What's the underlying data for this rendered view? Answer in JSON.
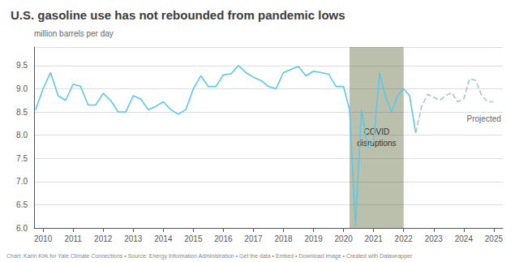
{
  "chart_data": {
    "type": "line",
    "title": "U.S. gasoline use has not rebounded from pandemic lows",
    "ylabel": "million barrels per day",
    "footer": "Chart: Karin Kirk for Yale Climate Connections • Source: Energy Information Administration • Get the data • Embed • Download image • Created with Datawrapper",
    "series": [
      {
        "x": [
          2009.75,
          2010.0,
          2010.25,
          2010.5,
          2010.75,
          2011.0,
          2011.25,
          2011.5,
          2011.75,
          2012.0,
          2012.25,
          2012.5,
          2012.75,
          2013.0,
          2013.25,
          2013.5,
          2013.75,
          2014.0,
          2014.25,
          2014.5,
          2014.75,
          2015.0,
          2015.25,
          2015.5,
          2015.75,
          2016.0,
          2016.25,
          2016.5,
          2016.75,
          2017.0,
          2017.25,
          2017.5,
          2017.75,
          2018.0,
          2018.25,
          2018.5,
          2018.75,
          2019.0,
          2019.25,
          2019.5,
          2019.75,
          2020.0,
          2020.2,
          2020.4,
          2020.6,
          2020.8,
          2021.0,
          2021.2,
          2021.4,
          2021.6,
          2021.8,
          2022.0,
          2022.2,
          2022.4
        ],
        "values": [
          8.55,
          9.0,
          9.35,
          8.85,
          8.75,
          9.1,
          9.05,
          8.65,
          8.65,
          8.9,
          8.75,
          8.5,
          8.5,
          8.85,
          8.78,
          8.55,
          8.62,
          8.72,
          8.55,
          8.45,
          8.55,
          9.0,
          9.28,
          9.05,
          9.05,
          9.3,
          9.32,
          9.5,
          9.35,
          9.25,
          9.18,
          9.05,
          9.0,
          9.35,
          9.42,
          9.48,
          9.28,
          9.38,
          9.35,
          9.32,
          9.05,
          9.05,
          8.55,
          6.05,
          8.55,
          7.75,
          7.85,
          9.35,
          8.82,
          8.5,
          8.85,
          9.0,
          8.85,
          8.05
        ],
        "color": "#5bc8e8",
        "line_style": "solid"
      },
      {
        "x": [
          2022.4,
          2022.6,
          2022.8,
          2023.0,
          2023.2,
          2023.4,
          2023.6,
          2023.8,
          2024.0,
          2024.2,
          2024.4,
          2024.6,
          2024.8,
          2025.0
        ],
        "values": [
          8.05,
          8.62,
          8.88,
          8.82,
          8.75,
          8.85,
          8.92,
          8.72,
          8.78,
          9.22,
          9.18,
          8.85,
          8.72,
          8.72
        ],
        "color": "#a0c4d8",
        "line_style": "dashed"
      }
    ],
    "xlim": [
      2009.7,
      2025.3
    ],
    "xticks": [
      2010,
      2011,
      2012,
      2013,
      2014,
      2015,
      2016,
      2017,
      2018,
      2019,
      2020,
      2021,
      2022,
      2023,
      2024,
      2025
    ],
    "ylim": [
      6.0,
      9.9
    ],
    "yticks": [
      {
        "value": 6.0,
        "label": "6.0"
      },
      6.5,
      {
        "value": 7.0,
        "label": "7.0"
      },
      7.5,
      {
        "value": 8.0,
        "label": "8.0"
      },
      8.5,
      {
        "value": 9.0,
        "label": "9.0"
      },
      9.5
    ],
    "grid": true,
    "spans": [
      {
        "from": 2020.2,
        "to": 2022.0,
        "color": "#3a4a10",
        "label": "COVID\ndisruptions"
      }
    ],
    "annotations": [
      {
        "text": "Projected",
        "x": 2024.1,
        "y": 8.35
      }
    ]
  }
}
